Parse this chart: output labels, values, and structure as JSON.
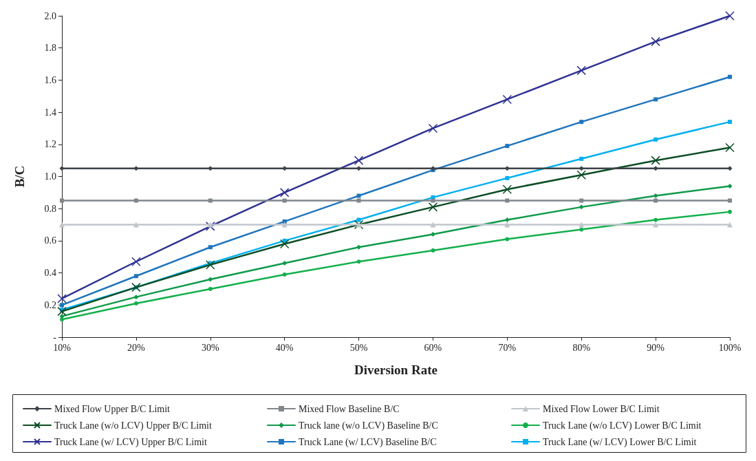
{
  "chart_data": {
    "type": "line",
    "xlabel": "Diversion Rate",
    "ylabel": "B/C",
    "categories": [
      "10%",
      "20%",
      "30%",
      "40%",
      "50%",
      "60%",
      "70%",
      "80%",
      "90%",
      "100%"
    ],
    "ylim": [
      0,
      2.0
    ],
    "yticks": [
      {
        "value": 0,
        "label": "-"
      },
      {
        "value": 0.2,
        "label": "0.2"
      },
      {
        "value": 0.4,
        "label": "0.4"
      },
      {
        "value": 0.6,
        "label": "0.6"
      },
      {
        "value": 0.8,
        "label": "0.8"
      },
      {
        "value": 1.0,
        "label": "1.0"
      },
      {
        "value": 1.2,
        "label": "1.2"
      },
      {
        "value": 1.4,
        "label": "1.4"
      },
      {
        "value": 1.6,
        "label": "1.6"
      },
      {
        "value": 1.8,
        "label": "1.8"
      },
      {
        "value": 2.0,
        "label": "2.0"
      }
    ],
    "grid": false,
    "legend": "bottom",
    "series": [
      {
        "name": "Mixed Flow Upper B/C Limit",
        "color": "#3c4247",
        "marker": "diamond",
        "values": [
          1.05,
          1.05,
          1.05,
          1.05,
          1.05,
          1.05,
          1.05,
          1.05,
          1.05,
          1.05
        ]
      },
      {
        "name": "Mixed Flow Baseline B/C",
        "color": "#7f868c",
        "marker": "square",
        "values": [
          0.85,
          0.85,
          0.85,
          0.85,
          0.85,
          0.85,
          0.85,
          0.85,
          0.85,
          0.85
        ]
      },
      {
        "name": "Mixed Flow Lower B/C Limit",
        "color": "#c0c6cc",
        "marker": "triangle",
        "values": [
          0.7,
          0.7,
          0.7,
          0.7,
          0.7,
          0.7,
          0.7,
          0.7,
          0.7,
          0.7
        ]
      },
      {
        "name": "Truck Lane (w/o LCV) Upper B/C Limit",
        "color": "#0b4d24",
        "marker": "cross",
        "values": [
          0.16,
          0.31,
          0.45,
          0.58,
          0.7,
          0.81,
          0.92,
          1.01,
          1.1,
          1.18
        ]
      },
      {
        "name": "Truck lane (w/o LCV) Baseline B/C",
        "color": "#0f9a4a",
        "marker": "diamond",
        "values": [
          0.13,
          0.25,
          0.36,
          0.46,
          0.56,
          0.64,
          0.73,
          0.81,
          0.88,
          0.94
        ]
      },
      {
        "name": "Truck Lane (w/o LCV) Lower B/C Limit",
        "color": "#12b04c",
        "marker": "circle",
        "values": [
          0.11,
          0.21,
          0.3,
          0.39,
          0.47,
          0.54,
          0.61,
          0.67,
          0.73,
          0.78
        ]
      },
      {
        "name": "Truck Lane (w/ LCV) Upper B/C Limit",
        "color": "#2e3192",
        "marker": "cross",
        "values": [
          0.24,
          0.47,
          0.69,
          0.9,
          1.1,
          1.3,
          1.48,
          1.66,
          1.84,
          2.0
        ]
      },
      {
        "name": "Truck Lane (w/ LCV) Baseline B/C",
        "color": "#1f75bd",
        "marker": "square",
        "values": [
          0.2,
          0.38,
          0.56,
          0.72,
          0.88,
          1.04,
          1.19,
          1.34,
          1.48,
          1.62
        ]
      },
      {
        "name": "Truck Lane (w/ LCV) Lower B/C Limit",
        "color": "#00b0f0",
        "marker": "square",
        "values": [
          0.17,
          0.31,
          0.46,
          0.6,
          0.73,
          0.87,
          0.99,
          1.11,
          1.23,
          1.34
        ]
      }
    ]
  }
}
